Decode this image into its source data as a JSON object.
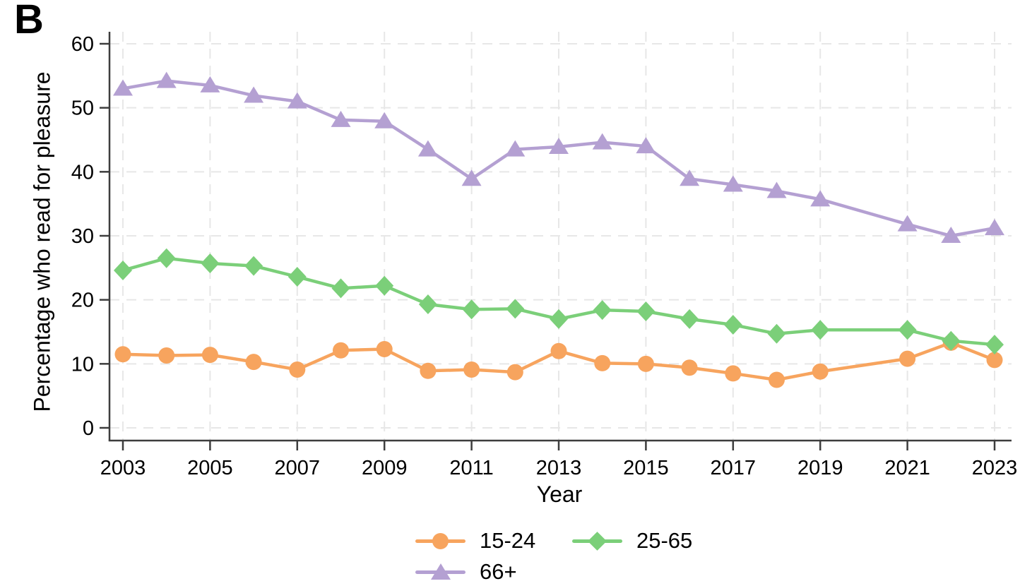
{
  "panel_label": "B",
  "colors": {
    "background": "#ffffff",
    "axis": "#3d3d3d",
    "gridline": "#e7e7e7",
    "text": "#000000"
  },
  "chart_data": {
    "type": "line",
    "title": "",
    "xlabel": "Year",
    "ylabel": "Percentage who read for pleasure",
    "x": [
      2003,
      2004,
      2005,
      2006,
      2007,
      2008,
      2009,
      2010,
      2011,
      2012,
      2013,
      2014,
      2015,
      2016,
      2017,
      2018,
      2019,
      2021,
      2022,
      2023
    ],
    "missing_years": [
      2020
    ],
    "xticks": [
      2003,
      2005,
      2007,
      2009,
      2011,
      2013,
      2015,
      2017,
      2019,
      2021,
      2023
    ],
    "yticks": [
      0,
      10,
      20,
      30,
      40,
      50,
      60
    ],
    "xlim": [
      2002.7,
      2023.4
    ],
    "ylim": [
      0,
      62
    ],
    "grid": "dashed light gray at every labeled tick, both axes",
    "legend_position": "bottom center, two rows",
    "series": [
      {
        "name": "15-24",
        "marker": "circle",
        "color": "#F7A45E",
        "values": [
          11.5,
          11.3,
          11.4,
          10.3,
          9.1,
          12.1,
          12.3,
          8.9,
          9.1,
          8.7,
          12.0,
          10.1,
          10.0,
          9.4,
          8.5,
          7.5,
          8.8,
          10.8,
          13.3,
          10.6
        ]
      },
      {
        "name": "25-65",
        "marker": "diamond",
        "color": "#7BCF79",
        "values": [
          24.6,
          26.5,
          25.7,
          25.3,
          23.6,
          21.8,
          22.2,
          19.3,
          18.5,
          18.6,
          17.0,
          18.4,
          18.2,
          17.0,
          16.1,
          14.7,
          15.3,
          15.3,
          13.6,
          13.0
        ]
      },
      {
        "name": "66+",
        "marker": "triangle",
        "color": "#B4A0D2",
        "values": [
          53.0,
          54.2,
          53.5,
          51.9,
          51.0,
          48.1,
          47.9,
          43.5,
          38.9,
          43.5,
          43.9,
          44.6,
          44.0,
          38.9,
          38.0,
          37.0,
          35.7,
          31.8,
          30.0,
          31.2
        ]
      }
    ]
  }
}
